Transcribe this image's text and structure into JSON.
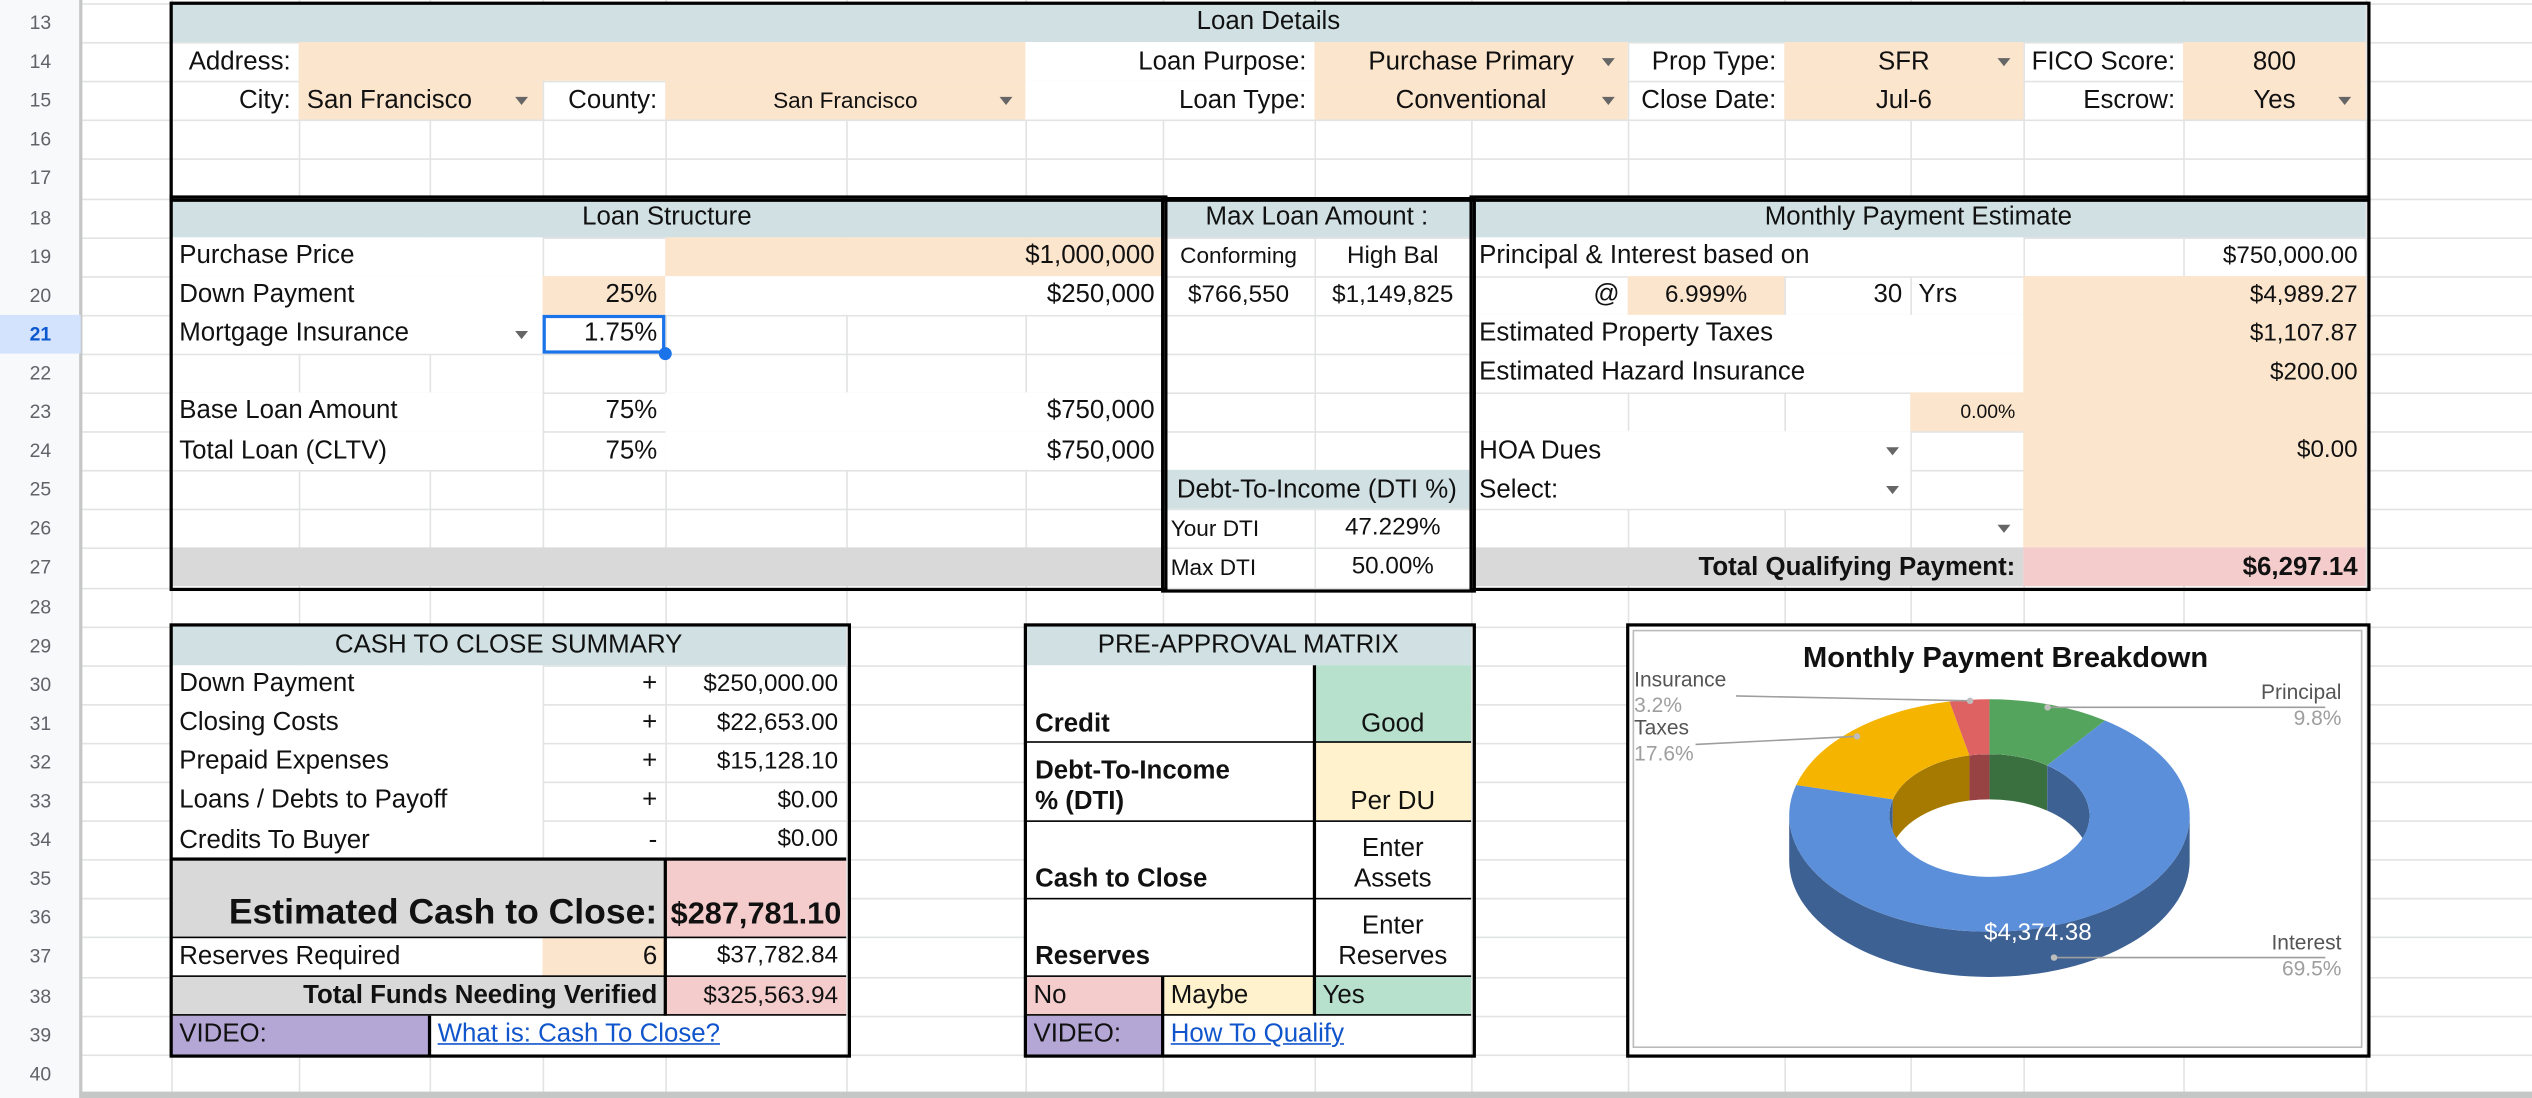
{
  "row_numbers": [
    13,
    14,
    15,
    16,
    17,
    18,
    19,
    20,
    21,
    22,
    23,
    24,
    25,
    26,
    27,
    28,
    29,
    30,
    31,
    32,
    33,
    34,
    35,
    36,
    37,
    38,
    39,
    40
  ],
  "loan_details": {
    "title": "Loan Details",
    "address_label": "Address:",
    "city_label": "City:",
    "city": "San Francisco",
    "county_label": "County:",
    "county": "San Francisco",
    "loan_purpose_label": "Loan Purpose:",
    "loan_purpose": "Purchase Primary",
    "loan_type_label": "Loan Type:",
    "loan_type": "Conventional",
    "prop_type_label": "Prop Type:",
    "prop_type": "SFR",
    "close_date_label": "Close Date:",
    "close_date": "Jul-6",
    "fico_label": "FICO Score:",
    "fico": "800",
    "escrow_label": "Escrow:",
    "escrow": "Yes"
  },
  "loan_structure": {
    "title": "Loan Structure",
    "purchase_price_label": "Purchase Price",
    "purchase_price": "$1,000,000",
    "down_payment_label": "Down Payment",
    "down_payment_pct": "25%",
    "down_payment": "$250,000",
    "mortgage_insurance_label": "Mortgage Insurance",
    "mortgage_insurance_pct": "1.75%",
    "base_loan_label": "Base Loan Amount",
    "base_loan_pct": "75%",
    "base_loan": "$750,000",
    "total_loan_label": "Total Loan (CLTV)",
    "total_loan_pct": "75%",
    "total_loan": "$750,000"
  },
  "max_loan": {
    "title": "Max Loan Amount :",
    "conforming_label": "Conforming",
    "high_bal_label": "High Bal",
    "conforming": "$766,550",
    "high_bal": "$1,149,825"
  },
  "dti": {
    "title": "Debt-To-Income (DTI %)",
    "your_label": "Your DTI",
    "your": "47.229%",
    "max_label": "Max DTI",
    "max": "50.00%"
  },
  "monthly_payment": {
    "title": "Monthly Payment Estimate",
    "pi_label": "Principal & Interest based on",
    "loan_amount": "$750,000.00",
    "at": "@",
    "rate": "6.999%",
    "term": "30",
    "term_unit": "Yrs",
    "pi": "$4,989.27",
    "taxes_label": "Estimated Property Taxes",
    "taxes": "$1,107.87",
    "hazard_label": "Estimated Hazard Insurance",
    "hazard": "$200.00",
    "mi_rate": "0.00%",
    "hoa_label": "HOA Dues",
    "hoa": "$0.00",
    "select_label": "Select:",
    "total_label": "Total Qualifying Payment:",
    "total": "$6,297.14"
  },
  "cash_to_close": {
    "title": "CASH TO CLOSE SUMMARY",
    "rows": [
      [
        "Down Payment",
        "+",
        "$250,000.00"
      ],
      [
        "Closing Costs",
        "+",
        "$22,653.00"
      ],
      [
        "Prepaid Expenses",
        "+",
        "$15,128.10"
      ],
      [
        "Loans / Debts to Payoff",
        "+",
        "$0.00"
      ],
      [
        "Credits To Buyer",
        "-",
        "$0.00"
      ]
    ],
    "estimated_label": "Estimated Cash to Close:",
    "estimated": "$287,781.10",
    "reserves_label": "Reserves Required",
    "reserves_months": "6",
    "reserves": "$37,782.84",
    "total_label": "Total Funds Needing Verified",
    "total": "$325,563.94",
    "video_label": "VIDEO:",
    "video_link": "What is: Cash To Close?"
  },
  "pre_approval": {
    "title": "PRE-APPROVAL MATRIX",
    "rows": [
      [
        "Credit",
        "Good"
      ],
      [
        "Debt-To-Income % (DTI)",
        "Per DU"
      ],
      [
        "Cash to Close",
        "Enter Assets"
      ],
      [
        "Reserves",
        "Enter Reserves"
      ]
    ],
    "legend": [
      "No",
      "Maybe",
      "Yes"
    ],
    "video_label": "VIDEO:",
    "video_link": "How To Qualify"
  },
  "chart_data": {
    "type": "pie",
    "donut": true,
    "title": "Monthly Payment Breakdown",
    "categories": [
      "Principal",
      "Interest",
      "Taxes",
      "Insurance"
    ],
    "values": [
      9.8,
      69.5,
      17.6,
      3.2
    ],
    "value_labels": [
      "9.8%",
      "69.5%",
      "17.6%",
      "3.2%"
    ],
    "colors": [
      "#55a45d",
      "#5b8fd9",
      "#f4b400",
      "#df6262"
    ],
    "annotation": "$4,374.38"
  }
}
